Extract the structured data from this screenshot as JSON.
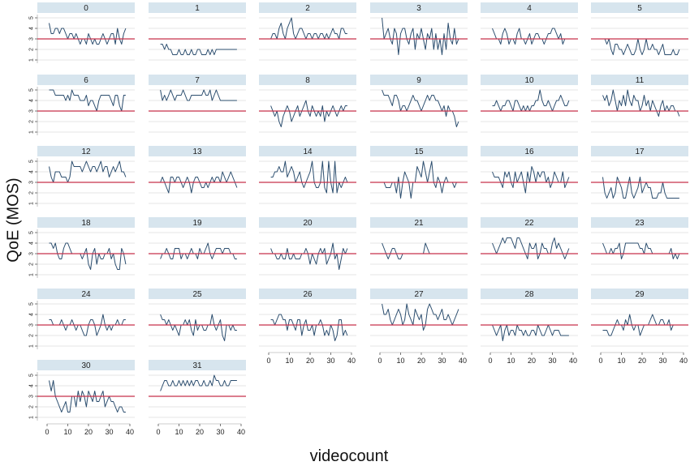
{
  "figure": {
    "ylabel": "QoE (MOS)",
    "xlabel": "videocount"
  },
  "colors": {
    "strip": "#d7e5ee",
    "line": "#2b4d6e",
    "ref": "#c8304a",
    "grid": "#e6e6e6",
    "tick": "#222222"
  },
  "chart_data": {
    "type": "line",
    "layout": "small-multiples",
    "columns": 6,
    "title": "",
    "xlabel": "videocount",
    "ylabel": "QoE (MOS)",
    "xlim": [
      0,
      40
    ],
    "ylim": [
      1,
      5
    ],
    "xticks": [
      0,
      10,
      20,
      30,
      40
    ],
    "yticks": [
      1,
      2,
      3,
      4,
      5
    ],
    "reference_line": 3,
    "grid": true,
    "panels": [
      {
        "label": "0",
        "y": [
          4.5,
          3.5,
          3.5,
          4,
          4,
          3.5,
          4,
          4,
          3.5,
          3,
          3.5,
          3.5,
          3,
          3.5,
          3,
          2.5,
          3,
          3,
          2.5,
          3.5,
          3,
          2.5,
          3,
          2.5,
          2.5,
          3,
          3.5,
          3,
          2.5,
          3,
          3.5,
          3.5,
          2.5,
          4,
          3,
          2.5,
          3.5,
          4
        ]
      },
      {
        "label": "1",
        "y": [
          2.5,
          2.5,
          2,
          2.5,
          2,
          2,
          1.5,
          1.5,
          1.5,
          2,
          1.5,
          1.5,
          2,
          1.5,
          1.5,
          2,
          1.5,
          1.5,
          2,
          2,
          1.5,
          1.5,
          1.5,
          2,
          1.5,
          2,
          1.5,
          2,
          2,
          2,
          2,
          2,
          2,
          2,
          2,
          2,
          2,
          2
        ]
      },
      {
        "label": "2",
        "y": [
          3,
          3.5,
          3.5,
          3,
          4,
          4.5,
          3.5,
          3,
          4,
          4.5,
          5,
          3.5,
          3,
          3.5,
          4,
          4,
          3.5,
          3,
          3.5,
          3.5,
          3,
          3.5,
          3.5,
          3,
          3.5,
          3.5,
          3,
          3.5,
          3,
          3.5,
          4,
          3.5,
          3.5,
          3,
          4,
          4,
          3.5,
          3.5
        ]
      },
      {
        "label": "3",
        "y": [
          5,
          3,
          3.5,
          4,
          3,
          2.5,
          4,
          3.5,
          1.5,
          3.5,
          4,
          4,
          3,
          2.5,
          3.5,
          4,
          2,
          3.5,
          3,
          4,
          3,
          2,
          3.5,
          3,
          4,
          2,
          3.5,
          2,
          3,
          1.5,
          3.5,
          2,
          4.5,
          3,
          2.5,
          4,
          2.5,
          3
        ]
      },
      {
        "label": "4",
        "y": [
          4,
          3.5,
          3,
          3,
          2.5,
          3.5,
          4,
          3.5,
          2.5,
          3,
          3,
          2.5,
          3.5,
          4,
          3,
          3,
          2.5,
          3,
          3.5,
          2.5,
          3,
          3.5,
          3.5,
          3,
          3,
          2.5,
          3,
          3.5,
          3.5,
          4,
          4,
          3.5,
          3,
          3.5,
          2.5,
          3,
          3,
          3
        ]
      },
      {
        "label": "5",
        "y": [
          3,
          3,
          2.5,
          3,
          2,
          1.5,
          2.5,
          2.5,
          2,
          2,
          1.5,
          2,
          2.5,
          2,
          1.5,
          1.5,
          2,
          3,
          2,
          1.5,
          2,
          3,
          2,
          2,
          2.5,
          2,
          2,
          1.5,
          2,
          2.5,
          1.5,
          1.5,
          1.5,
          1.5,
          2,
          1.5,
          1.5,
          2
        ]
      },
      {
        "label": "6",
        "y": [
          5,
          5,
          5,
          4.5,
          4.5,
          4.5,
          4.5,
          4.5,
          4,
          4.5,
          4,
          5,
          4.5,
          4.5,
          4.5,
          4,
          4,
          4,
          4.5,
          3.5,
          4,
          4,
          3.5,
          3,
          4,
          4.5,
          4.5,
          4.5,
          4.5,
          4.5,
          4,
          3.5,
          4.5,
          4.5,
          3.5,
          3,
          4.5,
          4.5
        ]
      },
      {
        "label": "7",
        "y": [
          5,
          4,
          4.5,
          4,
          4.5,
          5,
          4.5,
          4,
          4.5,
          4.5,
          4.5,
          5,
          4.5,
          4,
          4,
          4.5,
          4.5,
          4.5,
          4.5,
          4.5,
          4.5,
          5,
          4.5,
          4.5,
          5,
          4,
          4.5,
          5,
          4.5,
          4,
          4,
          4,
          4,
          4,
          4,
          4,
          4,
          4
        ]
      },
      {
        "label": "8",
        "y": [
          3.5,
          3,
          2.5,
          3,
          2,
          1.5,
          2.5,
          3,
          3.5,
          3,
          2,
          2.5,
          3,
          3.5,
          2.5,
          3,
          3.5,
          4,
          3,
          2.5,
          3.5,
          3,
          2.5,
          3,
          2.5,
          3.5,
          2,
          3,
          2.5,
          3,
          3.5,
          3,
          2.5,
          3,
          3.5,
          3,
          3.5,
          3.5
        ]
      },
      {
        "label": "9",
        "y": [
          5,
          4.5,
          4.5,
          4.5,
          4,
          3.5,
          4.5,
          4.5,
          4,
          3,
          3.5,
          3.5,
          3,
          3.5,
          4,
          4.5,
          4,
          4,
          3.5,
          3,
          3.5,
          4,
          4.5,
          4,
          4.5,
          4.5,
          4,
          4,
          3.5,
          3,
          3.5,
          2.5,
          3.5,
          3,
          3,
          2.5,
          1.5,
          2
        ]
      },
      {
        "label": "10",
        "y": [
          3.5,
          3.5,
          4,
          3.5,
          3,
          3.5,
          3.5,
          4,
          4,
          3.5,
          3,
          4,
          4,
          3.5,
          3,
          3.5,
          3,
          3.5,
          3,
          3.5,
          3.5,
          4,
          4,
          5,
          4,
          3.5,
          3.5,
          4,
          3.5,
          3,
          3.5,
          4,
          4,
          4.5,
          4,
          3.5,
          3.5,
          4
        ]
      },
      {
        "label": "11",
        "y": [
          4.5,
          4,
          4.5,
          3.5,
          4,
          5,
          4,
          3,
          4,
          3.5,
          4.5,
          3.5,
          5,
          4,
          3.5,
          4.5,
          4,
          4,
          3,
          3.5,
          4.5,
          3.5,
          4,
          3,
          4,
          3.5,
          3,
          2.5,
          3.5,
          4,
          3,
          3.5,
          3,
          3.5,
          3.5,
          3,
          3,
          2.5
        ]
      },
      {
        "label": "12",
        "y": [
          4.5,
          3.5,
          3,
          4,
          4,
          4,
          3.5,
          3.5,
          3.5,
          3,
          3.5,
          5,
          4.5,
          4.5,
          4.5,
          4.5,
          4,
          4.5,
          5,
          4.5,
          4,
          4.5,
          4.5,
          4,
          4.5,
          5,
          4,
          4.5,
          4.5,
          3.5,
          4,
          4.5,
          4,
          4.5,
          5,
          4,
          4,
          3.5
        ]
      },
      {
        "label": "13",
        "y": [
          3,
          3.5,
          3,
          2.5,
          2,
          3.5,
          3.5,
          3,
          3.5,
          3.5,
          3,
          2.5,
          3,
          3.5,
          3,
          2,
          3,
          3.5,
          3.5,
          3,
          2.5,
          2.5,
          3,
          2.5,
          3,
          3.5,
          3,
          3.5,
          3.5,
          3,
          4,
          3.5,
          3,
          3.5,
          4,
          3.5,
          3,
          2.5
        ]
      },
      {
        "label": "14",
        "y": [
          3.5,
          3.5,
          4,
          4,
          4.5,
          4,
          4,
          5,
          3.5,
          4,
          4.5,
          4,
          3,
          3.5,
          4,
          3,
          2.5,
          3,
          3.5,
          4,
          5,
          3,
          2.5,
          2.5,
          3,
          5,
          2.5,
          2,
          5,
          3,
          2,
          5,
          2,
          3,
          2.5,
          3,
          3.5,
          3
        ]
      },
      {
        "label": "15",
        "y": [
          3,
          3,
          2.5,
          2.5,
          2.5,
          3,
          3,
          2,
          3.5,
          1.5,
          3,
          4,
          3.5,
          3,
          1.5,
          3,
          3,
          4.5,
          4,
          3.5,
          5,
          4,
          3,
          4,
          5,
          3,
          2.5,
          3.5,
          3,
          2,
          3,
          3.5,
          3,
          3,
          3,
          2.5,
          3,
          3
        ]
      },
      {
        "label": "16",
        "y": [
          4,
          3.5,
          3.5,
          3.5,
          3,
          2.5,
          4,
          3.5,
          4,
          3,
          2.5,
          4,
          3,
          3.5,
          4,
          3,
          2,
          4,
          3,
          4.5,
          4,
          3,
          4,
          3.5,
          4,
          4,
          3,
          3.5,
          2.5,
          3,
          4,
          3.5,
          3,
          3,
          4,
          2.5,
          3,
          3.5
        ]
      },
      {
        "label": "17",
        "y": [
          3.5,
          2,
          1.5,
          2,
          2.5,
          1.5,
          2,
          3.5,
          3,
          2.5,
          1.5,
          1.5,
          2.5,
          3.5,
          2,
          1.5,
          2,
          2.5,
          3.5,
          2,
          2.5,
          3,
          2.5,
          2.5,
          1.5,
          1.5,
          1.5,
          2,
          2,
          3,
          2,
          1.5,
          1.5,
          1.5,
          1.5,
          1.5,
          1.5,
          1.5
        ]
      },
      {
        "label": "18",
        "y": [
          4,
          4,
          3.5,
          4,
          3,
          2.5,
          2.5,
          3.5,
          4,
          4,
          3.5,
          3,
          3,
          3,
          3,
          3,
          2.5,
          3,
          3.5,
          2,
          1.5,
          3,
          3.5,
          2,
          3,
          2.5,
          2.5,
          3,
          3,
          3.5,
          2.5,
          3,
          2,
          1.5,
          1.5,
          3.5,
          3,
          2
        ]
      },
      {
        "label": "19",
        "y": [
          2.5,
          3,
          3,
          3.5,
          3,
          2.5,
          2.5,
          3.5,
          3.5,
          3.5,
          2.5,
          3,
          3,
          2.5,
          3,
          3.5,
          3,
          3,
          2.5,
          3.5,
          3,
          3,
          3.5,
          4,
          3,
          2.5,
          3,
          3.5,
          3.5,
          3.5,
          3,
          3.5,
          3.5,
          3.5,
          3,
          3,
          2.5,
          2.5
        ]
      },
      {
        "label": "20",
        "y": [
          3.5,
          3,
          3,
          2.5,
          2.5,
          3,
          2.5,
          2.5,
          3.5,
          2.5,
          2.5,
          3,
          2.5,
          2.5,
          2.5,
          3,
          3,
          3.5,
          3,
          2,
          3,
          2.5,
          2,
          3,
          3.5,
          3,
          3.5,
          2,
          2.5,
          3,
          4,
          2.5,
          3,
          1.5,
          2.5,
          3.5,
          3,
          3.5
        ]
      },
      {
        "label": "21",
        "y": [
          4,
          3.5,
          3,
          2.5,
          3,
          3.5,
          3.5,
          3,
          2.5,
          2.5,
          3,
          3,
          3,
          3,
          3,
          3,
          3,
          3,
          3,
          3,
          3,
          4,
          3.5,
          3,
          3,
          3,
          3,
          3,
          3,
          3,
          3,
          3,
          3,
          3,
          3,
          3,
          3,
          3
        ]
      },
      {
        "label": "22",
        "y": [
          4,
          3.5,
          3,
          3.5,
          4,
          4.5,
          4,
          4.5,
          4.5,
          4.5,
          4,
          3.5,
          4.5,
          4.5,
          4,
          3.5,
          3,
          2.5,
          4,
          3.5,
          3.5,
          4,
          2.5,
          3,
          4,
          3.5,
          3.5,
          3,
          3,
          4,
          4.5,
          3.5,
          4,
          3.5,
          3,
          2.5,
          3,
          3.5
        ]
      },
      {
        "label": "23",
        "y": [
          4,
          3.5,
          3,
          3,
          3.5,
          3,
          3.5,
          3.5,
          4,
          2.5,
          3,
          4,
          4,
          4,
          4,
          4,
          4,
          4,
          3.5,
          3.5,
          3,
          4,
          3.5,
          3.5,
          3,
          3,
          3,
          3,
          3,
          3,
          3,
          3,
          3,
          3.5,
          2.5,
          3,
          2.5,
          3
        ]
      },
      {
        "label": "24",
        "y": [
          3.5,
          3.5,
          3,
          3,
          3,
          3,
          3.5,
          3,
          2.5,
          3,
          3,
          3.5,
          3,
          2.5,
          3,
          3,
          2.5,
          2,
          2,
          3,
          3.5,
          3.5,
          3,
          2,
          2.5,
          3,
          4,
          3,
          2.5,
          3,
          2.5,
          3,
          3,
          3.5,
          3,
          3,
          3.5,
          3.5
        ]
      },
      {
        "label": "25",
        "y": [
          4,
          3.5,
          3.5,
          3,
          3.5,
          3,
          2.5,
          3,
          2.5,
          2,
          3,
          3,
          3.5,
          3,
          3.5,
          2.5,
          2,
          3.5,
          2.5,
          3,
          3,
          2.5,
          2.5,
          3,
          3,
          4,
          3,
          2.5,
          3,
          3.5,
          2,
          1.5,
          3,
          3,
          2.5,
          3,
          2.5,
          2.5
        ]
      },
      {
        "label": "26",
        "y": [
          3.5,
          3.5,
          3,
          3.5,
          4,
          4,
          3.5,
          3.5,
          2.5,
          3.5,
          3.5,
          3,
          2.5,
          3.5,
          3.5,
          2,
          3,
          3.5,
          2.5,
          2.5,
          3,
          2,
          3,
          3,
          3.5,
          3,
          2,
          2.5,
          2,
          3,
          2.5,
          1.5,
          2,
          3.5,
          3.5,
          2,
          2.5,
          2
        ]
      },
      {
        "label": "27",
        "y": [
          5,
          4,
          4,
          4.5,
          3.5,
          3,
          3.5,
          4,
          4.5,
          4,
          3,
          3.5,
          5,
          4,
          3.5,
          3,
          4.5,
          4,
          3.5,
          4,
          2.5,
          3,
          4.5,
          5,
          4.5,
          4,
          4,
          3.5,
          4,
          4.5,
          3.5,
          3.5,
          4,
          3.5,
          3,
          3.5,
          4,
          4.5
        ]
      },
      {
        "label": "28",
        "y": [
          3,
          2.5,
          2,
          2.5,
          3,
          1.5,
          2.5,
          3,
          2,
          2.5,
          2.5,
          2,
          3,
          2.5,
          2.5,
          2,
          2.5,
          2,
          2,
          2.5,
          2.5,
          2,
          3,
          2.5,
          2,
          2,
          2.5,
          3,
          2.5,
          2,
          2.5,
          2.5,
          2.5,
          2,
          2,
          2,
          2,
          2
        ]
      },
      {
        "label": "29",
        "y": [
          2.5,
          2.5,
          2.5,
          2,
          2,
          2.5,
          3,
          3.5,
          3,
          3,
          2.5,
          3.5,
          3,
          4,
          3,
          2.5,
          3,
          3,
          2,
          2.5,
          3,
          3,
          3,
          3.5,
          4,
          3.5,
          3,
          3,
          3.5,
          3.5,
          3,
          3,
          3.5,
          2.5,
          3,
          3,
          3,
          3
        ]
      },
      {
        "label": "30",
        "y": [
          4.5,
          3.5,
          4.5,
          3,
          2.5,
          2,
          1.5,
          2,
          2.5,
          1.5,
          1.5,
          3,
          3,
          2,
          3.5,
          2.5,
          3.5,
          3,
          2,
          3.5,
          3,
          2.5,
          3.5,
          2.5,
          2.5,
          3,
          3.5,
          2,
          2.5,
          3,
          2.5,
          2.5,
          2,
          1.5,
          2,
          2,
          1.5,
          1.5
        ]
      },
      {
        "label": "31",
        "y": [
          3.5,
          4,
          4.5,
          4.5,
          4,
          4,
          4.5,
          4,
          4,
          4.5,
          4,
          4.5,
          4,
          4.5,
          4,
          4.5,
          4,
          4.5,
          4.5,
          4,
          4,
          4.5,
          4,
          4,
          4.5,
          4,
          5,
          4.5,
          4.5,
          4,
          4,
          4.5,
          4,
          4,
          4.5,
          4.5,
          4.5,
          4.5
        ]
      }
    ]
  }
}
